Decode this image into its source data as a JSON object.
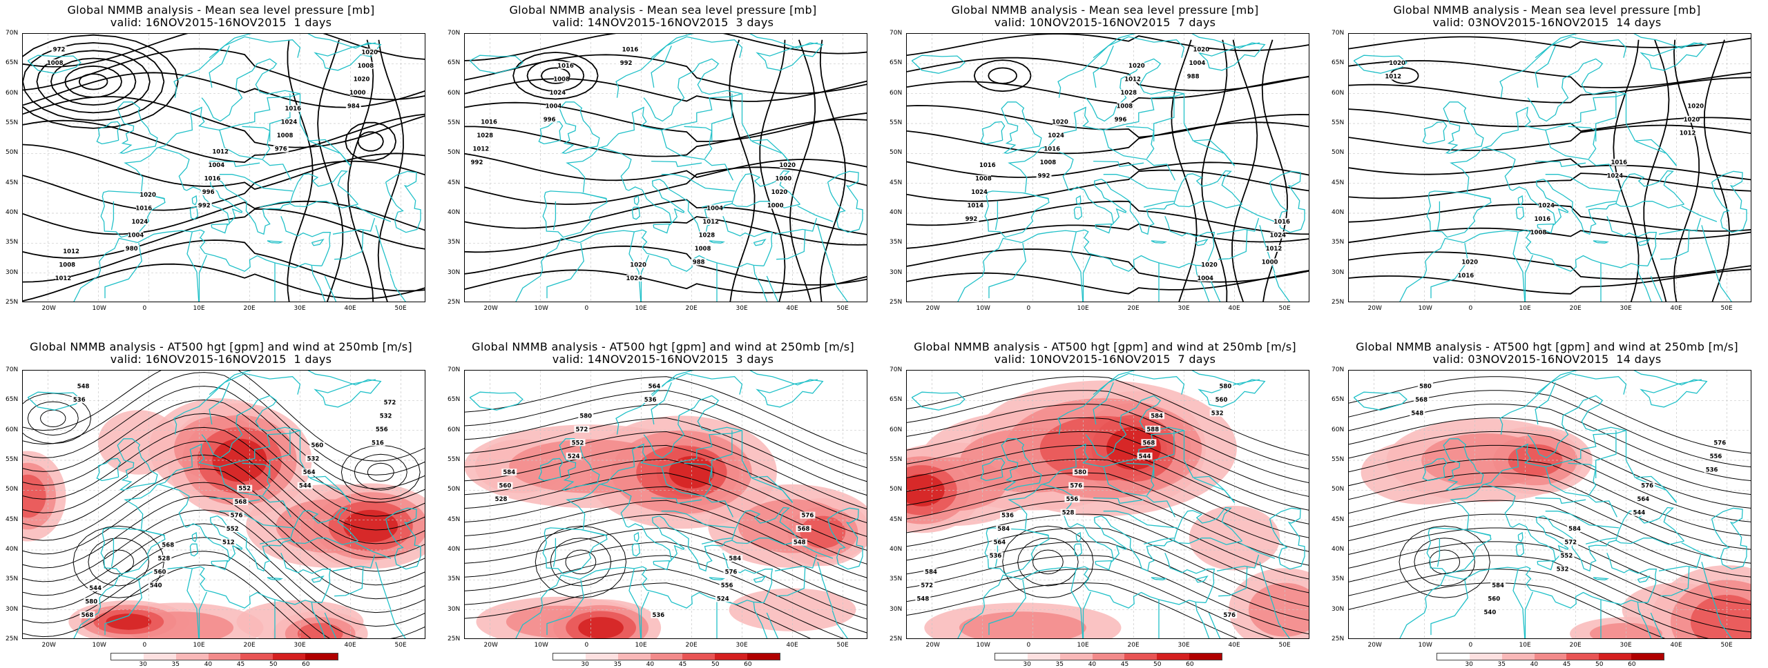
{
  "top_row": [
    {
      "title": "Global NMMB analysis - Mean sea level pressure [mb]",
      "valid": "valid: 16NOV2015-16NOV2015  1 days",
      "labels": [
        "1008",
        "992",
        "984",
        "980",
        "976",
        "972",
        "996",
        "1000",
        "1004",
        "1008",
        "1012",
        "1016",
        "1020",
        "1024",
        "1024",
        "1008",
        "1004",
        "1008",
        "1016",
        "1016",
        "1012",
        "1012",
        "1020",
        "1020"
      ]
    },
    {
      "title": "Global NMMB analysis - Mean sea level pressure [mb]",
      "valid": "valid: 14NOV2015-16NOV2015  3 days",
      "labels": [
        "996",
        "988",
        "992",
        "992",
        "1000",
        "1004",
        "1008",
        "1012",
        "1016",
        "1020",
        "1024",
        "1028",
        "1028",
        "1024",
        "1000",
        "1008",
        "1012",
        "1016",
        "1020",
        "1020",
        "1016",
        "1004"
      ]
    },
    {
      "title": "Global NMMB analysis - Mean sea level pressure [mb]",
      "valid": "valid: 10NOV2015-16NOV2015  7 days",
      "labels": [
        "992",
        "988",
        "992",
        "996",
        "1000",
        "1008",
        "1004",
        "1014",
        "1008",
        "1012",
        "1016",
        "1020",
        "1024",
        "1028",
        "1024",
        "1024",
        "1004",
        "1008",
        "1012",
        "1016",
        "1020",
        "1020",
        "1016",
        "1020"
      ]
    },
    {
      "title": "Global NMMB analysis - Mean sea level pressure [mb]",
      "valid": "valid: 03NOV2015-16NOV2015  14 days",
      "labels": [
        "1008",
        "1012",
        "1016",
        "1024",
        "1012",
        "1016",
        "1020",
        "1020",
        "1016",
        "1020",
        "1024",
        "1020"
      ]
    }
  ],
  "bottom_row": [
    {
      "title": "Global NMMB analysis - AT500 hgt [gpm] and wind at 250mb [m/s]",
      "valid": "valid: 16NOV2015-16NOV2015  1 days",
      "labels": [
        "536",
        "512",
        "516",
        "540",
        "544",
        "548",
        "552",
        "556",
        "560",
        "564",
        "568",
        "576",
        "532",
        "528",
        "532",
        "580",
        "568",
        "572",
        "568",
        "560",
        "544",
        "552"
      ]
    },
    {
      "title": "Global NMMB analysis - AT500 hgt [gpm] and wind at 250mb [m/s]",
      "valid": "valid: 14NOV2015-16NOV2015  3 days",
      "labels": [
        "524",
        "524",
        "528",
        "536",
        "548",
        "552",
        "556",
        "560",
        "564",
        "568",
        "572",
        "576",
        "584",
        "536",
        "576",
        "580",
        "584"
      ]
    },
    {
      "title": "Global NMMB analysis - AT500 hgt [gpm] and wind at 250mb [m/s]",
      "valid": "valid: 10NOV2015-16NOV2015  7 days",
      "labels": [
        "528",
        "532",
        "536",
        "544",
        "548",
        "556",
        "560",
        "564",
        "568",
        "572",
        "576",
        "580",
        "584",
        "588",
        "584",
        "580",
        "576",
        "536",
        "584"
      ]
    },
    {
      "title": "Global NMMB analysis - AT500 hgt [gpm] and wind at 250mb [m/s]",
      "valid": "valid: 03NOV2015-16NOV2015  14 days",
      "labels": [
        "532",
        "536",
        "540",
        "544",
        "548",
        "552",
        "556",
        "560",
        "564",
        "568",
        "572",
        "576",
        "584",
        "576",
        "580",
        "584"
      ]
    }
  ],
  "axes": {
    "lat_ticks": [
      "70N",
      "65N",
      "60N",
      "55N",
      "50N",
      "45N",
      "40N",
      "35N",
      "30N",
      "25N"
    ],
    "lon_ticks": [
      "20W",
      "10W",
      "0",
      "10E",
      "20E",
      "30E",
      "40E",
      "50E"
    ]
  },
  "colorbar": {
    "ticks": [
      "30",
      "35",
      "40",
      "45",
      "50",
      "60"
    ],
    "colors": [
      "#ffffff",
      "#fde0e0",
      "#f9b8b8",
      "#f28a8a",
      "#e85454",
      "#d42020",
      "#b00000"
    ]
  },
  "colors": {
    "coast": "#20c0c8",
    "contour": "#000000",
    "grid": "#c8c8c8"
  }
}
